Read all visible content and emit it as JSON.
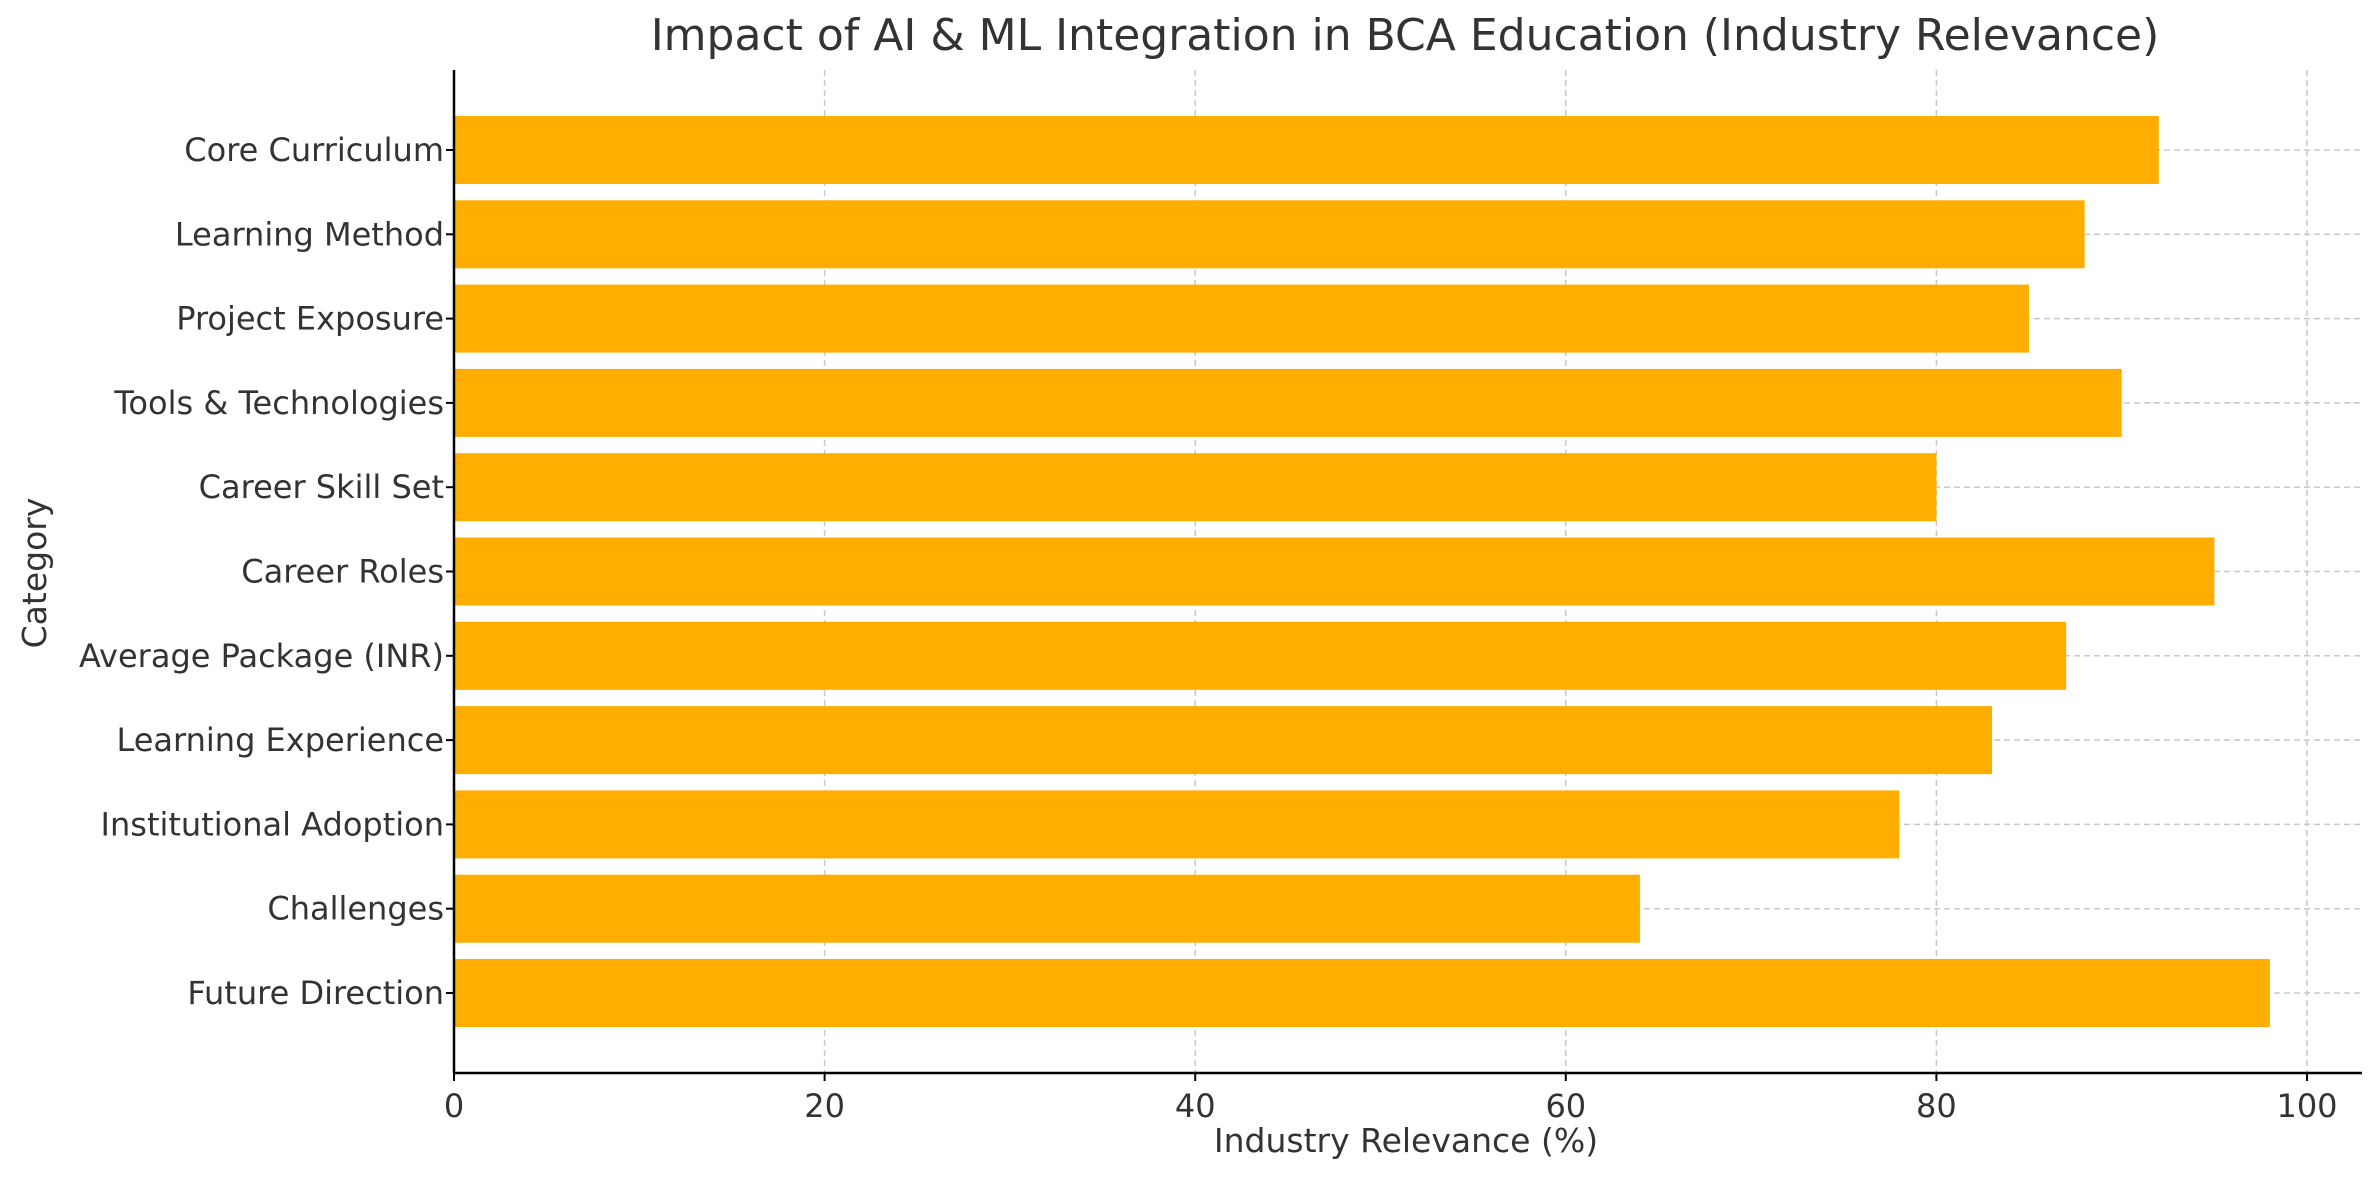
{
  "chart_data": {
    "type": "bar",
    "orientation": "horizontal",
    "title": "Impact of AI & ML Integration in BCA Education (Industry Relevance)",
    "xlabel": "Industry Relevance (%)",
    "ylabel": "Category",
    "categories": [
      "Core Curriculum",
      "Learning Method",
      "Project Exposure",
      "Tools & Technologies",
      "Career Skill Set",
      "Career Roles",
      "Average Package (INR)",
      "Learning Experience",
      "Institutional Adoption",
      "Challenges",
      "Future Direction"
    ],
    "values": [
      92,
      88,
      85,
      90,
      80,
      95,
      87,
      83,
      78,
      64,
      98
    ],
    "xlim": [
      0,
      103
    ],
    "xticks": [
      0,
      20,
      40,
      60,
      80,
      100
    ],
    "grid": true,
    "bar_color": "#FFAE00"
  }
}
